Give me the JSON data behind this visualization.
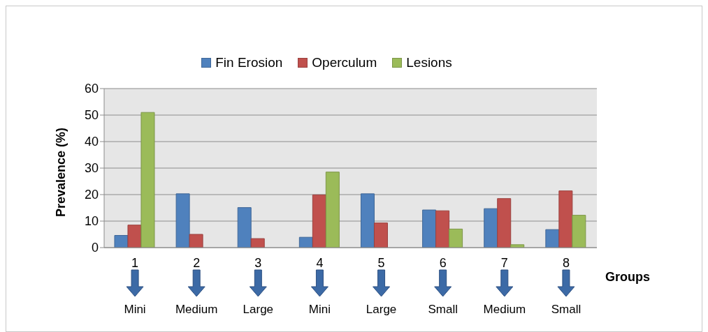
{
  "chart_data": {
    "type": "bar",
    "categories": [
      "1",
      "2",
      "3",
      "4",
      "5",
      "6",
      "7",
      "8"
    ],
    "series": [
      {
        "name": "Fin Erosion",
        "color": "#4f81bd",
        "values": [
          4.6,
          20.3,
          15.1,
          3.9,
          20.3,
          14.2,
          14.7,
          6.8
        ]
      },
      {
        "name": "Operculum",
        "color": "#c0504d",
        "values": [
          8.5,
          5.0,
          3.4,
          19.9,
          9.3,
          13.9,
          18.5,
          21.4
        ]
      },
      {
        "name": "Lesions",
        "color": "#9bbb59",
        "values": [
          51,
          null,
          null,
          28.5,
          null,
          7.0,
          1.1,
          12.2
        ]
      }
    ],
    "xlabel": "Groups",
    "ylabel": "Prevalence (%)",
    "ylim": [
      0,
      60
    ],
    "yticks": [
      0,
      10,
      20,
      30,
      40,
      50,
      60
    ],
    "grid": "y",
    "legend": "top",
    "annotations": [
      "Mini",
      "Medium",
      "Large",
      "Mini",
      "Large",
      "Small",
      "Medium",
      "Small"
    ]
  }
}
